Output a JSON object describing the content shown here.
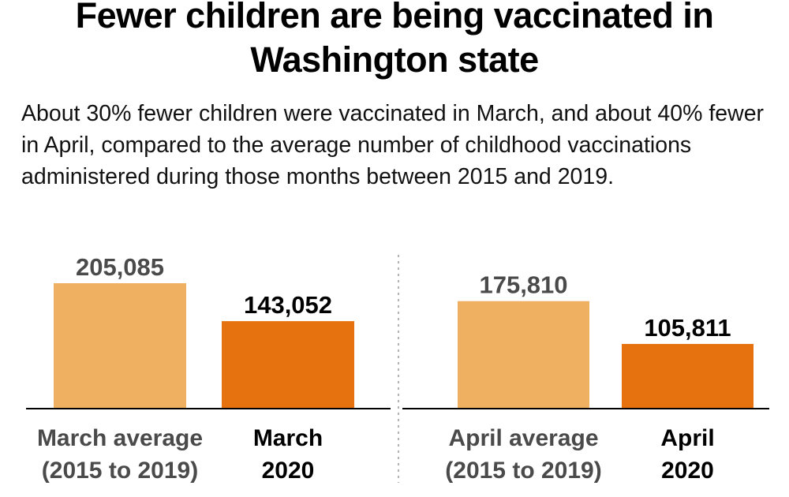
{
  "title": "Fewer children are being vaccinated in Washington state",
  "subtitle": "About 30% fewer children were vaccinated in March, and about 40% fewer in April, compared to the average number of childhood vaccinations administered during those months between 2015 and 2019.",
  "chart_data": [
    {
      "type": "bar",
      "categories": [
        [
          "March average",
          "(2015 to 2019)"
        ],
        [
          "March",
          "2020"
        ]
      ],
      "values": [
        205085,
        143052
      ],
      "value_labels": [
        "205,085",
        "143,052"
      ],
      "colors": [
        "#f0b062",
        "#e5720e"
      ],
      "label_colors": [
        "#4a4a4a",
        "#000000"
      ],
      "grid": false
    },
    {
      "type": "bar",
      "categories": [
        [
          "April average",
          "(2015 to 2019)"
        ],
        [
          "April",
          "2020"
        ]
      ],
      "values": [
        175810,
        105811
      ],
      "value_labels": [
        "175,810",
        "105,811"
      ],
      "colors": [
        "#f0b062",
        "#e5720e"
      ],
      "label_colors": [
        "#4a4a4a",
        "#000000"
      ],
      "grid": false
    }
  ]
}
